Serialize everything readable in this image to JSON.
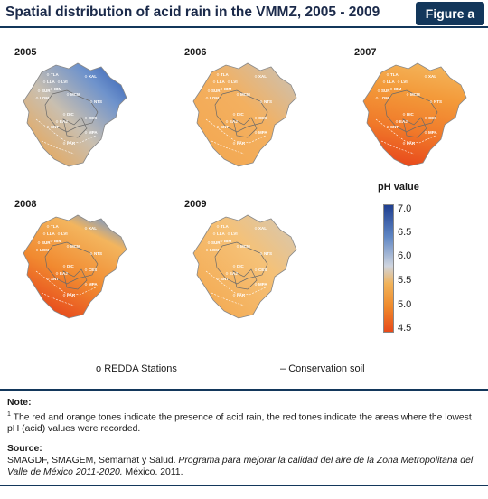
{
  "header": {
    "title": "Spatial distribution of acid rain in the VMMZ, 2005 - 2009",
    "badge": "Figure a"
  },
  "maps": [
    {
      "year": "2005",
      "palette": "blueNE"
    },
    {
      "year": "2006",
      "palette": "orange"
    },
    {
      "year": "2007",
      "palette": "redOrange"
    },
    {
      "year": "2008",
      "palette": "redSouth"
    },
    {
      "year": "2009",
      "palette": "lightOrange"
    }
  ],
  "stations": [
    "TLA",
    "XAL",
    "LLA",
    "LVI",
    "IBM",
    "SUR",
    "MCM",
    "LOM",
    "NTS",
    "DIC",
    "EAJ",
    "CES",
    "SNT",
    "MPA",
    "PAR"
  ],
  "legend": {
    "title": "pH value",
    "ticks": [
      "7.0",
      "6.5",
      "6.0",
      "5.5",
      "5.0",
      "4.5"
    ],
    "colors": {
      "high": "#1f3f8f",
      "mid": "#cfd5df",
      "low": "#e84a1a"
    },
    "redda": "REDDA Stations",
    "conservation": "Conservation soil",
    "redda_symbol": "o",
    "conservation_symbol": "–"
  },
  "note": {
    "heading": "Note:",
    "marker": "1",
    "text": " The red and orange tones indicate the presence of acid rain, the red tones indicate the areas where the lowest pH (acid) values were recorded."
  },
  "source": {
    "heading": "Source:",
    "prefix": "SMAGDF, SMAGEM, Semarnat y Salud. ",
    "italic": "Programa para mejorar la calidad del aire de la Zona Metropolitana del Valle de México 2011-2020.",
    "suffix": " México. 2011."
  }
}
